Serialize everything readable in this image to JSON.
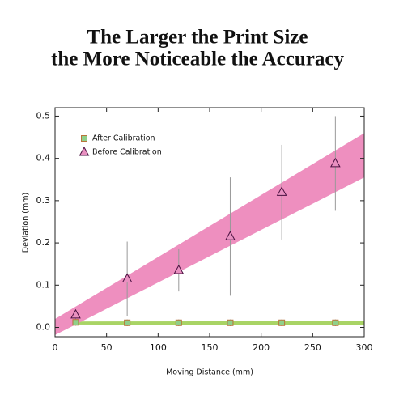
{
  "chart_data": {
    "type": "scatter",
    "title": [
      "The Larger the Print Size",
      "the More Noticeable the Accuracy"
    ],
    "xlabel": "Moving Distance (mm)",
    "ylabel": "Deviation (mm)",
    "xlim": [
      0,
      300
    ],
    "ylim": [
      -0.022,
      0.52
    ],
    "xticks": [
      0,
      50,
      100,
      150,
      200,
      250,
      300
    ],
    "yticks": [
      {
        "value": 0,
        "label": "0.0"
      },
      0.1,
      0.2,
      0.3,
      0.4,
      0.5
    ],
    "legend": "upper left",
    "series": [
      {
        "name": "After Calibration",
        "marker": "square",
        "color": "#8fd08a",
        "edge": "#b8743a",
        "band_color": "#a9d465",
        "x": [
          20,
          70,
          120,
          170,
          220,
          272
        ],
        "values": [
          0.012,
          0.011,
          0.011,
          0.011,
          0.011,
          0.011
        ],
        "errors": [
          0.008,
          0.008,
          0.008,
          0.008,
          0.008,
          0.008
        ],
        "band_x": [
          0,
          300
        ],
        "band_lower": [
          0.007,
          0.006
        ],
        "band_upper": [
          0.014,
          0.015
        ]
      },
      {
        "name": "Before Calibration",
        "marker": "triangle",
        "color": "#e890c0",
        "edge": "#4a1040",
        "band_color": "#ee8fbf",
        "x": [
          20,
          70,
          120,
          170,
          220,
          272
        ],
        "values": [
          0.03,
          0.115,
          0.135,
          0.215,
          0.32,
          0.388
        ],
        "errors": [
          0.01,
          0.088,
          0.05,
          0.14,
          0.112,
          0.112
        ],
        "band_x": [
          0,
          300
        ],
        "band_lower": [
          -0.018,
          0.355
        ],
        "band_upper": [
          0.02,
          0.46
        ]
      }
    ]
  }
}
